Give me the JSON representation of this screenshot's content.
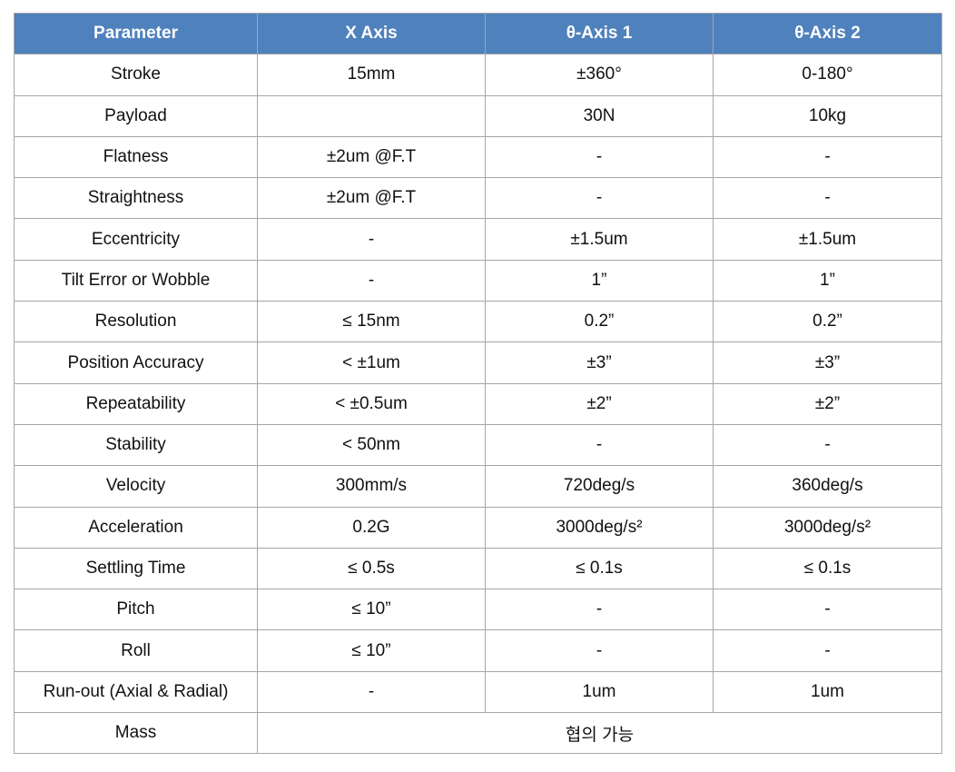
{
  "header_color": "#4f81bd",
  "headers": [
    "Parameter",
    "X Axis",
    "θ-Axis 1",
    "θ-Axis 2"
  ],
  "rows": [
    [
      "Stroke",
      "15mm",
      "±360°",
      "0-180°"
    ],
    [
      "Payload",
      "",
      "30N",
      "10kg"
    ],
    [
      "Flatness",
      "±2um @F.T",
      "-",
      "-"
    ],
    [
      "Straightness",
      "±2um @F.T",
      "-",
      "-"
    ],
    [
      "Eccentricity",
      "-",
      "±1.5um",
      "±1.5um"
    ],
    [
      "Tilt Error or Wobble",
      "-",
      "1”",
      "1”"
    ],
    [
      "Resolution",
      "≤ 15nm",
      "0.2”",
      "0.2”"
    ],
    [
      "Position Accuracy",
      "< ±1um",
      "±3”",
      "±3”"
    ],
    [
      "Repeatability",
      "< ±0.5um",
      "±2”",
      "±2”"
    ],
    [
      "Stability",
      "< 50nm",
      "-",
      "-"
    ],
    [
      "Velocity",
      "300mm/s",
      "720deg/s",
      "360deg/s"
    ],
    [
      "Acceleration",
      "0.2G",
      "3000deg/s²",
      "3000deg/s²"
    ],
    [
      "Settling Time",
      "≤ 0.5s",
      "≤ 0.1s",
      "≤ 0.1s"
    ],
    [
      "Pitch",
      "≤ 10”",
      "-",
      "-"
    ],
    [
      "Roll",
      "≤ 10”",
      "-",
      "-"
    ],
    [
      "Run-out (Axial & Radial)",
      "-",
      "1um",
      "1um"
    ]
  ],
  "mass_row": {
    "label": "Mass",
    "value": "협의 가능"
  }
}
